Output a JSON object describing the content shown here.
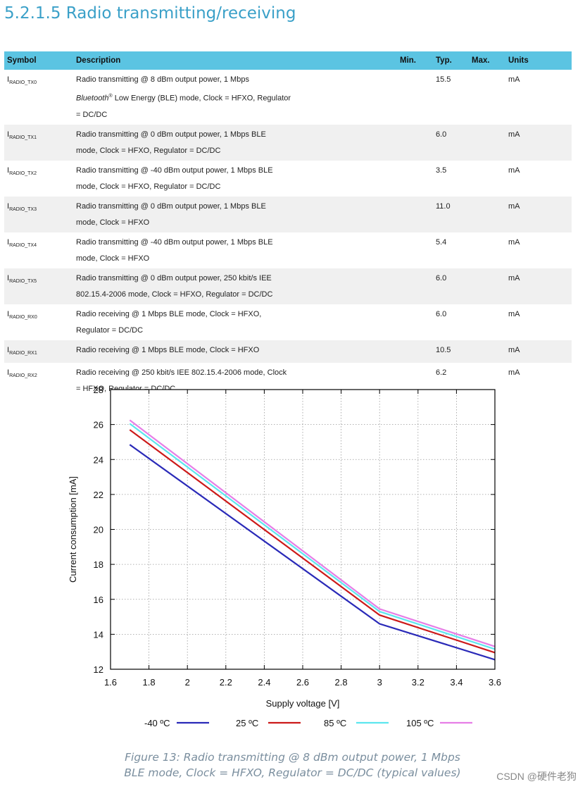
{
  "section": {
    "title": "5.2.1.5 Radio transmitting/receiving"
  },
  "table": {
    "headers": [
      "Symbol",
      "Description",
      "Min.",
      "Typ.",
      "Max.",
      "Units"
    ],
    "rows": [
      {
        "sym": "I",
        "sub": "RADIO_TX0",
        "desc": [
          "Radio transmitting @ 8 dBm output power, 1 Mbps",
          "Low Energy (BLE) mode, Clock = HFXO, Regulator",
          "= DC/DC"
        ],
        "desc_italic": "Bluetooth",
        "desc_sup": "®",
        "min": "",
        "typ": "15.5",
        "max": "",
        "units": "mA"
      },
      {
        "sym": "I",
        "sub": "RADIO_TX1",
        "desc": [
          "Radio transmitting @ 0 dBm output power, 1 Mbps BLE",
          "mode, Clock = HFXO, Regulator = DC/DC"
        ],
        "min": "",
        "typ": "6.0",
        "max": "",
        "units": "mA"
      },
      {
        "sym": "I",
        "sub": "RADIO_TX2",
        "desc": [
          "Radio transmitting @ -40 dBm output power, 1 Mbps BLE",
          "mode, Clock = HFXO, Regulator = DC/DC"
        ],
        "min": "",
        "typ": "3.5",
        "max": "",
        "units": "mA"
      },
      {
        "sym": "I",
        "sub": "RADIO_TX3",
        "desc": [
          "Radio transmitting @ 0 dBm output power, 1 Mbps BLE",
          "mode, Clock = HFXO"
        ],
        "min": "",
        "typ": "11.0",
        "max": "",
        "units": "mA"
      },
      {
        "sym": "I",
        "sub": "RADIO_TX4",
        "desc": [
          "Radio transmitting @ -40 dBm output power, 1 Mbps BLE",
          "mode, Clock = HFXO"
        ],
        "min": "",
        "typ": "5.4",
        "max": "",
        "units": "mA"
      },
      {
        "sym": "I",
        "sub": "RADIO_TX5",
        "desc": [
          "Radio transmitting @ 0 dBm output power, 250 kbit/s IEE",
          "802.15.4-2006 mode, Clock = HFXO, Regulator = DC/DC"
        ],
        "min": "",
        "typ": "6.0",
        "max": "",
        "units": "mA"
      },
      {
        "sym": "I",
        "sub": "RADIO_RX0",
        "desc": [
          "Radio receiving @ 1 Mbps BLE mode, Clock = HFXO,",
          "Regulator = DC/DC"
        ],
        "min": "",
        "typ": "6.0",
        "max": "",
        "units": "mA"
      },
      {
        "sym": "I",
        "sub": "RADIO_RX1",
        "desc": [
          "Radio receiving @ 1 Mbps BLE mode, Clock = HFXO"
        ],
        "min": "",
        "typ": "10.5",
        "max": "",
        "units": "mA"
      },
      {
        "sym": "I",
        "sub": "RADIO_RX2",
        "desc": [
          "Radio receiving @ 250 kbit/s IEE 802.15.4-2006 mode, Clock",
          "= HFXO, Regulator = DC/DC"
        ],
        "min": "",
        "typ": "6.2",
        "max": "",
        "units": "mA"
      }
    ]
  },
  "chart_data": {
    "type": "line",
    "xlabel": "Supply voltage [V]",
    "ylabel": "Current consumption [mA]",
    "xlim": [
      1.6,
      3.6
    ],
    "ylim": [
      12,
      28
    ],
    "xticks": [
      "1.6",
      "1.8",
      "2",
      "2.2",
      "2.4",
      "2.6",
      "2.8",
      "3",
      "3.2",
      "3.4",
      "3.6"
    ],
    "yticks": [
      "12",
      "14",
      "16",
      "18",
      "20",
      "22",
      "24",
      "26",
      "28"
    ],
    "grid": true,
    "legend_position": "bottom",
    "series": [
      {
        "name": "-40 ºC",
        "color": "#2a2ab8",
        "x": [
          1.7,
          3.0,
          3.6
        ],
        "y": [
          24.85,
          14.6,
          12.55
        ]
      },
      {
        "name": "25 ºC",
        "color": "#cc1a1a",
        "x": [
          1.7,
          3.0,
          3.6
        ],
        "y": [
          25.7,
          15.1,
          12.95
        ]
      },
      {
        "name": "85 ºC",
        "color": "#5ce6ee",
        "x": [
          1.7,
          3.0,
          3.6
        ],
        "y": [
          26.05,
          15.3,
          13.15
        ]
      },
      {
        "name": "105 ºC",
        "color": "#e67ee6",
        "x": [
          1.7,
          3.0,
          3.6
        ],
        "y": [
          26.25,
          15.45,
          13.3
        ]
      }
    ]
  },
  "caption": {
    "line1": "Figure 13: Radio transmitting @ 8 dBm output power, 1 Mbps",
    "line2": "BLE mode, Clock = HFXO, Regulator = DC/DC (typical values)"
  },
  "watermark": "CSDN @硬件老狗"
}
